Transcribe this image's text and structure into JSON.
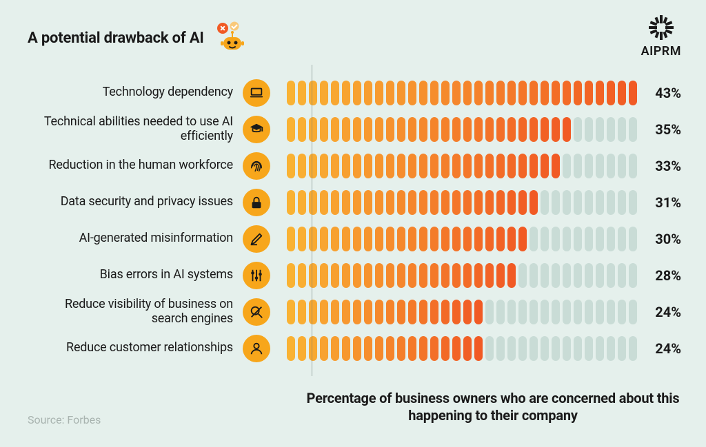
{
  "type": "horizontal-pill-bar-chart",
  "background_color": "#e5f0ec",
  "text_color": "#1a1a1a",
  "title": {
    "text": "A potential drawback of AI",
    "fontsize": 22,
    "fontweight": 700
  },
  "brand": {
    "label": "AIPRM",
    "color": "#1a1a1a"
  },
  "source": {
    "prefix": "Source: ",
    "name": "Forbes",
    "color": "#a8b3af"
  },
  "caption": "Percentage of business owners who are concerned about this happening to their company",
  "chart": {
    "max_value": 43,
    "pill_count": 32,
    "pill_width": 12,
    "pill_gap": 4,
    "pill_height": 36,
    "pill_radius": 6,
    "empty_pill_color": "#c9dcd6",
    "gradient_start": "#f9b233",
    "gradient_end": "#f15a24",
    "icon_bg": "#f7a61b",
    "icon_fg": "#1a1a1a",
    "axis_color": "#6b7d77",
    "value_suffix": "%",
    "label_fontsize": 18,
    "value_fontsize": 20
  },
  "rows": [
    {
      "label": "Technology dependency",
      "value": 43,
      "icon": "laptop"
    },
    {
      "label": "Technical abilities needed to use AI efficiently",
      "value": 35,
      "icon": "grad-cap"
    },
    {
      "label": "Reduction in the human workforce",
      "value": 33,
      "icon": "fingerprint"
    },
    {
      "label": "Data security and privacy issues",
      "value": 31,
      "icon": "lock"
    },
    {
      "label": "AI-generated misinformation",
      "value": 30,
      "icon": "pencil"
    },
    {
      "label": "Bias errors in AI systems",
      "value": 28,
      "icon": "sliders"
    },
    {
      "label": "Reduce visibility of business on search engines",
      "value": 24,
      "icon": "search-off"
    },
    {
      "label": "Reduce customer relationships",
      "value": 24,
      "icon": "user"
    }
  ]
}
